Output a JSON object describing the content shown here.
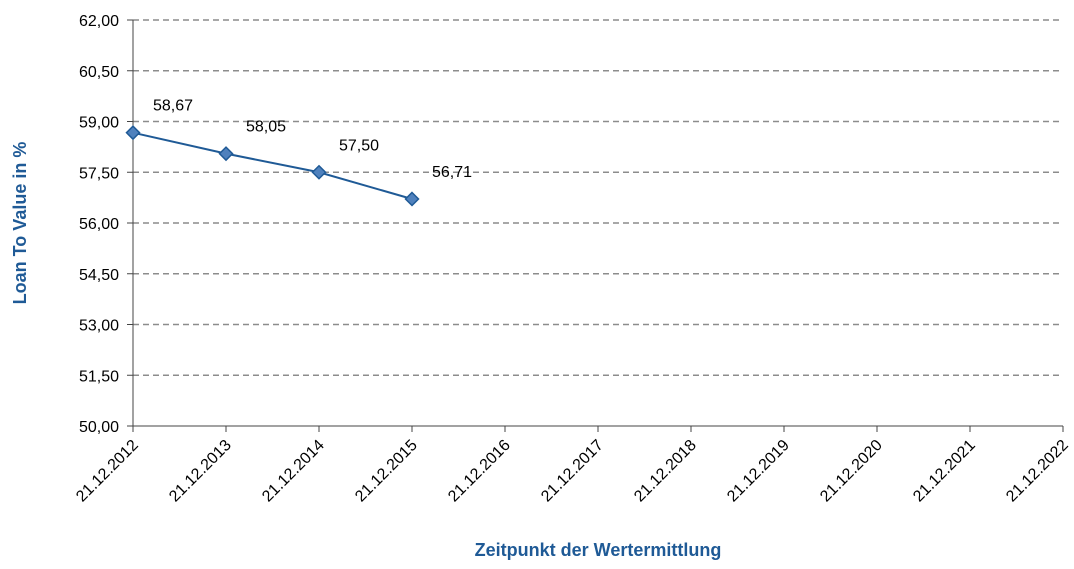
{
  "chart_data": {
    "type": "line",
    "x_label": "Zeitpunkt der Wertermittlung",
    "y_label": "Loan To Value in %",
    "categories": [
      "21.12.2012",
      "21.12.2013",
      "21.12.2014",
      "21.12.2015",
      "21.12.2016",
      "21.12.2017",
      "21.12.2018",
      "21.12.2019",
      "21.12.2020",
      "21.12.2021",
      "21.12.2022"
    ],
    "series": [
      {
        "name": "Loan To Value",
        "color": "#1f5a96",
        "marker_color": "#4f81bd",
        "values": [
          58.67,
          58.05,
          57.5,
          56.71,
          null,
          null,
          null,
          null,
          null,
          null,
          null
        ],
        "value_labels": [
          "58,67",
          "58,05",
          "57,50",
          "56,71",
          null,
          null,
          null,
          null,
          null,
          null,
          null
        ]
      }
    ],
    "ylim": [
      50,
      62
    ],
    "yticks": [
      {
        "value": 50,
        "label": "50,00"
      },
      {
        "value": 51.5,
        "label": "51,50"
      },
      {
        "value": 53,
        "label": "53,00"
      },
      {
        "value": 54.5,
        "label": "54,50"
      },
      {
        "value": 56,
        "label": "56,00"
      },
      {
        "value": 57.5,
        "label": "57,50"
      },
      {
        "value": 59,
        "label": "59,00"
      },
      {
        "value": 60.5,
        "label": "60,50"
      },
      {
        "value": 62,
        "label": "62,00"
      }
    ],
    "grid": true
  }
}
